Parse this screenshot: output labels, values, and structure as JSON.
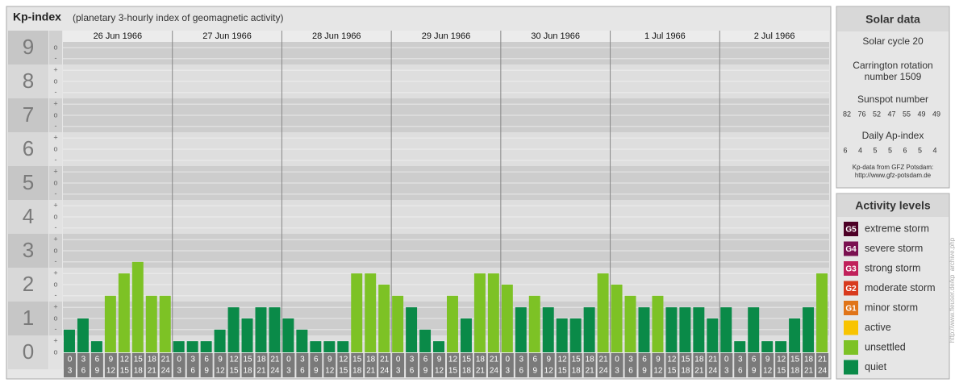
{
  "header": {
    "title": "Kp-index",
    "subtitle": "(planetary 3-hourly index of geomagnetic activity)"
  },
  "chart_data": {
    "type": "bar",
    "days": [
      "26 Jun 1966",
      "27 Jun 1966",
      "28 Jun 1966",
      "29 Jun 1966",
      "30 Jun 1966",
      "1 Jul 1966",
      "2 Jul 1966"
    ],
    "hour_bounds": [
      0,
      3,
      6,
      9,
      12,
      15,
      18,
      21,
      24
    ],
    "values": [
      0.67,
      1,
      0.33,
      1.67,
      2.33,
      2.67,
      1.67,
      1.67,
      0.33,
      0.33,
      0.33,
      0.67,
      1.33,
      1,
      1.33,
      1.33,
      1,
      0.67,
      0.33,
      0.33,
      0.33,
      2.33,
      2.33,
      2,
      1.67,
      1.33,
      0.67,
      0.33,
      1.67,
      1,
      2.33,
      2.33,
      2,
      1.33,
      1.67,
      1.33,
      1,
      1,
      1.33,
      2.33,
      2,
      1.67,
      1.33,
      1.67,
      1.33,
      1.33,
      1.33,
      1,
      1.33,
      0.33,
      1.33,
      0.33,
      0.33,
      1,
      1.33,
      2.33
    ],
    "colors": [
      "#0a8a48",
      "#0a8a48",
      "#0a8a48",
      "#7dc225",
      "#7dc225",
      "#7dc225",
      "#7dc225",
      "#7dc225",
      "#0a8a48",
      "#0a8a48",
      "#0a8a48",
      "#0a8a48",
      "#0a8a48",
      "#0a8a48",
      "#0a8a48",
      "#0a8a48",
      "#0a8a48",
      "#0a8a48",
      "#0a8a48",
      "#0a8a48",
      "#0a8a48",
      "#7dc225",
      "#7dc225",
      "#7dc225",
      "#7dc225",
      "#0a8a48",
      "#0a8a48",
      "#0a8a48",
      "#7dc225",
      "#0a8a48",
      "#7dc225",
      "#7dc225",
      "#7dc225",
      "#0a8a48",
      "#7dc225",
      "#0a8a48",
      "#0a8a48",
      "#0a8a48",
      "#0a8a48",
      "#7dc225",
      "#7dc225",
      "#7dc225",
      "#0a8a48",
      "#7dc225",
      "#0a8a48",
      "#0a8a48",
      "#0a8a48",
      "#0a8a48",
      "#0a8a48",
      "#0a8a48",
      "#0a8a48",
      "#0a8a48",
      "#0a8a48",
      "#0a8a48",
      "#0a8a48",
      "#7dc225"
    ],
    "ylim": [
      -0.5,
      9.5
    ],
    "yticks": [
      0,
      1,
      2,
      3,
      4,
      5,
      6,
      7,
      8,
      9
    ],
    "minor_ticks": [
      {
        "value": 0,
        "label": "o"
      },
      {
        "value": 0.33,
        "label": "+"
      },
      {
        "value": 0.67,
        "label": "-"
      },
      {
        "value": 1,
        "label": "o"
      },
      {
        "value": 1.33,
        "label": "+"
      },
      {
        "value": 1.67,
        "label": "-"
      },
      {
        "value": 2,
        "label": "o"
      },
      {
        "value": 2.33,
        "label": "+"
      },
      {
        "value": 2.67,
        "label": "-"
      },
      {
        "value": 3,
        "label": "o"
      },
      {
        "value": 3.33,
        "label": "+"
      },
      {
        "value": 3.67,
        "label": "-"
      },
      {
        "value": 4,
        "label": "o"
      },
      {
        "value": 4.33,
        "label": "+"
      },
      {
        "value": 4.67,
        "label": "-"
      },
      {
        "value": 5,
        "label": "o"
      },
      {
        "value": 5.33,
        "label": "+"
      },
      {
        "value": 5.67,
        "label": "-"
      },
      {
        "value": 6,
        "label": "o"
      },
      {
        "value": 6.33,
        "label": "+"
      },
      {
        "value": 6.67,
        "label": "-"
      },
      {
        "value": 7,
        "label": "o"
      },
      {
        "value": 7.33,
        "label": "+"
      },
      {
        "value": 7.67,
        "label": "-"
      },
      {
        "value": 8,
        "label": "o"
      },
      {
        "value": 8.33,
        "label": "+"
      },
      {
        "value": 8.67,
        "label": "-"
      },
      {
        "value": 9,
        "label": "o"
      }
    ],
    "grid": true
  },
  "solar_data": {
    "title": "Solar data",
    "solar_cycle": "Solar cycle 20",
    "carrington": [
      "Carrington rotation",
      "number 1509"
    ],
    "sunspot_label": "Sunspot number",
    "sunspot_numbers": [
      82,
      76,
      52,
      47,
      55,
      49,
      49
    ],
    "ap_label": "Daily Ap-index",
    "ap_values": [
      6,
      4,
      5,
      5,
      6,
      5,
      4
    ],
    "source": [
      "Kp-data from GFZ Potsdam:",
      "http://www.gfz-potsdam.de"
    ]
  },
  "activity_levels": {
    "title": "Activity levels",
    "items": [
      {
        "badge": "G5",
        "label": "extreme storm",
        "color": "#4d0026"
      },
      {
        "badge": "G4",
        "label": "severe storm",
        "color": "#7a1050"
      },
      {
        "badge": "G3",
        "label": "strong storm",
        "color": "#c0205a"
      },
      {
        "badge": "G2",
        "label": "moderate storm",
        "color": "#d83a1e"
      },
      {
        "badge": "G1",
        "label": "minor storm",
        "color": "#e07418"
      },
      {
        "label": "active",
        "color": "#f8c400"
      },
      {
        "label": "unsettled",
        "color": "#7dc225"
      },
      {
        "label": "quiet",
        "color": "#0a8a48"
      }
    ]
  },
  "side_note": "http://www.fleuser.de/kp_archive.php"
}
